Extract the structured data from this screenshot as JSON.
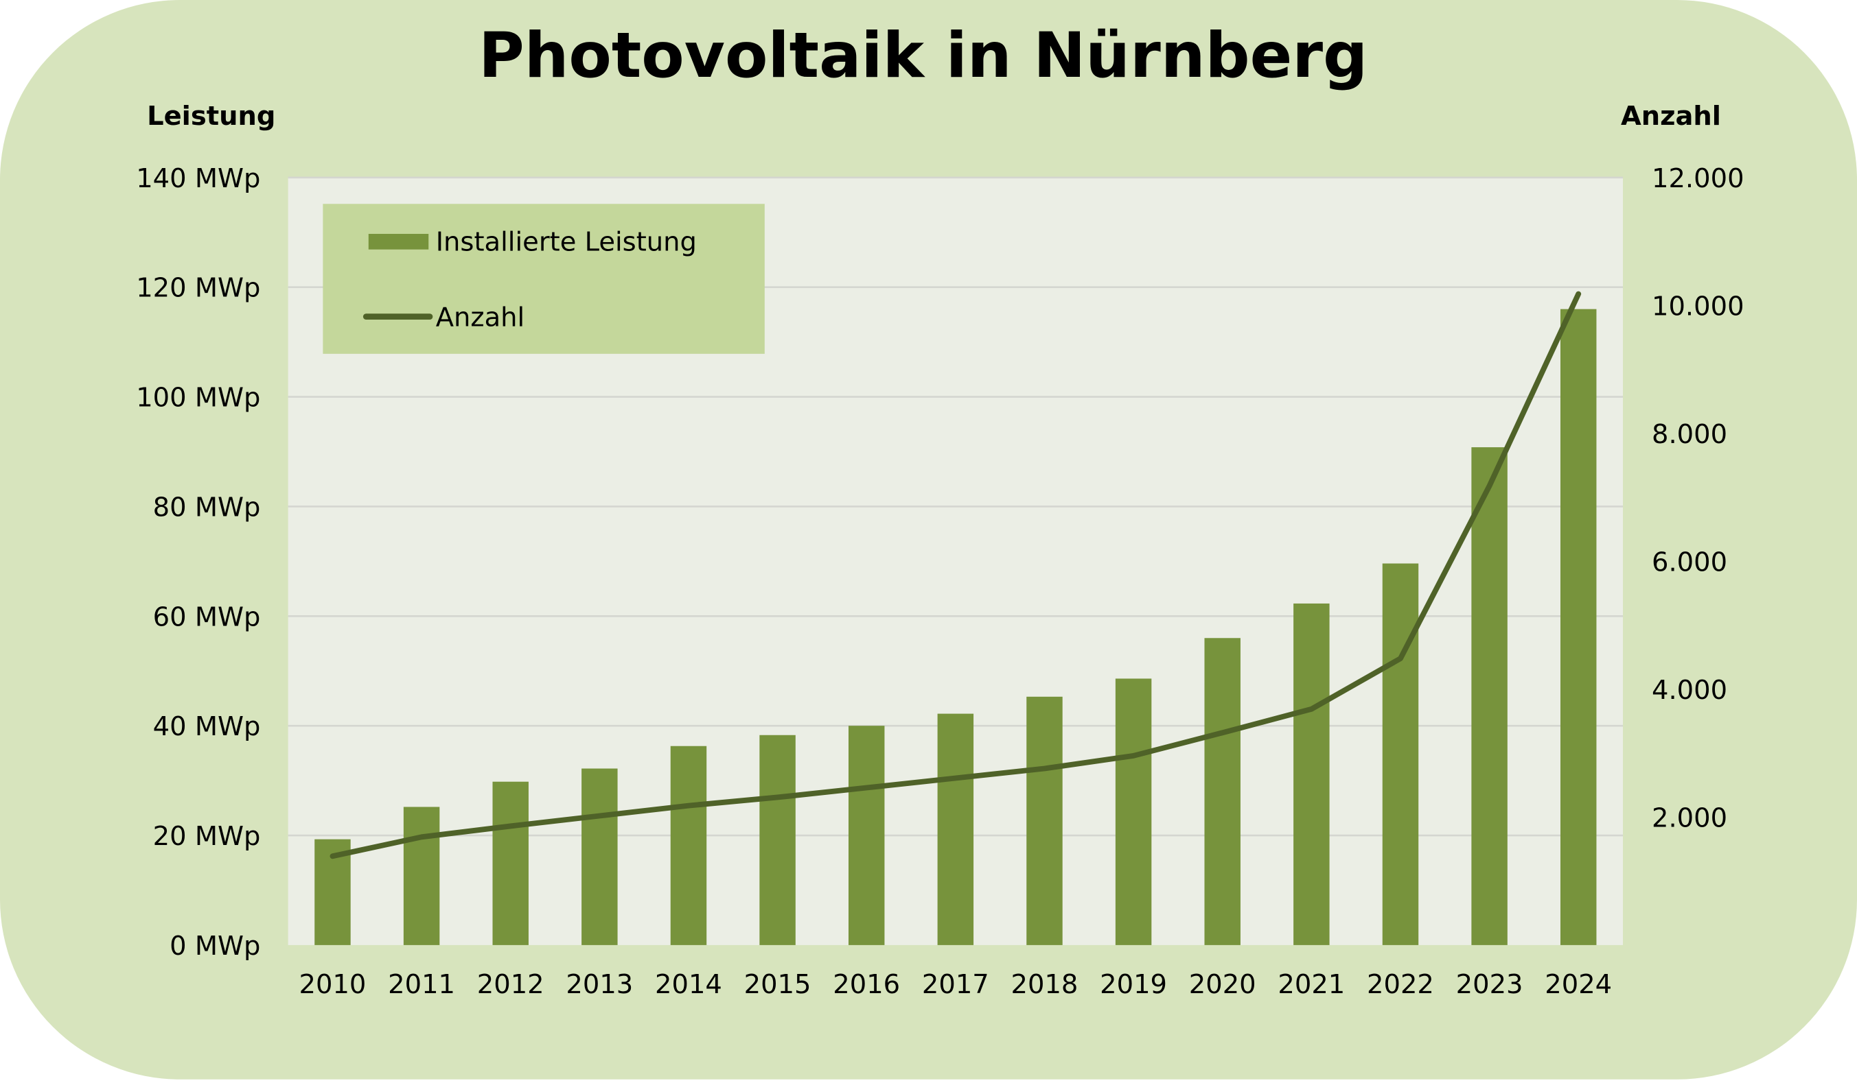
{
  "chart_data": {
    "type": "bar+line",
    "title": "Photovoltaik in Nürnberg",
    "ylabel_left": "Leistung",
    "ylabel_right": "Anzahl",
    "categories": [
      "2010",
      "2011",
      "2012",
      "2013",
      "2014",
      "2015",
      "2016",
      "2017",
      "2018",
      "2019",
      "2020",
      "2021",
      "2022",
      "2023",
      "2024"
    ],
    "series": [
      {
        "name": "Installierte Leistung",
        "type": "bar",
        "axis": "left",
        "unit": "MWp",
        "values": [
          19.3,
          25.2,
          29.8,
          32.2,
          36.3,
          38.3,
          40.0,
          42.2,
          45.3,
          48.6,
          56.0,
          62.3,
          69.6,
          90.8,
          116.0
        ]
      },
      {
        "name": "Anzahl",
        "type": "line",
        "axis": "right",
        "values": [
          1390,
          1690,
          1860,
          2020,
          2180,
          2310,
          2460,
          2610,
          2760,
          2960,
          3320,
          3690,
          4480,
          7180,
          10180
        ]
      }
    ],
    "ylim_left": [
      0,
      140
    ],
    "yticks_left": [
      "0 MWp",
      "20 MWp",
      "40 MWp",
      "60 MWp",
      "80 MWp",
      "100 MWp",
      "120 MWp",
      "140 MWp"
    ],
    "ylim_right": [
      0,
      12000
    ],
    "yticks_right": [
      "2.000",
      "4.000",
      "6.000",
      "8.000",
      "10.000",
      "12.000"
    ],
    "yticks_right_values": [
      2000,
      4000,
      6000,
      8000,
      10000,
      12000
    ],
    "grid": true,
    "legend_position": "top-left",
    "colors": {
      "bar": "#77933c",
      "line": "#4f6228",
      "background": "#d7e4bd",
      "plot": "#ebeee5",
      "legend": "#c4d79b"
    }
  }
}
